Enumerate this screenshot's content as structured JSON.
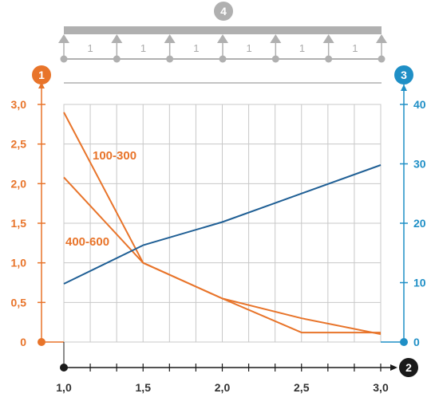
{
  "colors": {
    "left_axis": "#e8742a",
    "right_axis": "#1f8fc6",
    "bottom_axis": "#1a1a1a",
    "beam": "#b0b0b0",
    "grid": "#c8c8c8"
  },
  "badges": {
    "left": "1",
    "bottom": "2",
    "right": "3",
    "top": "4"
  },
  "beam": {
    "span_labels": [
      "1",
      "1",
      "1",
      "1",
      "1",
      "1"
    ]
  },
  "chart_data": {
    "type": "line",
    "x": [
      1.0,
      1.5,
      2.0,
      2.5,
      3.0
    ],
    "xlim": [
      1.0,
      3.0
    ],
    "x_ticks": [
      "1,0",
      "1,5",
      "2,0",
      "2,5",
      "3,0"
    ],
    "left_axis": {
      "ylim": [
        0,
        3.0
      ],
      "ticks": [
        "0",
        "0,5",
        "1,0",
        "1,5",
        "2,0",
        "2,5",
        "3,0"
      ]
    },
    "right_axis": {
      "ylim": [
        0,
        40
      ],
      "ticks": [
        "0",
        "10",
        "20",
        "30",
        "40"
      ]
    },
    "series": [
      {
        "name": "100-300",
        "axis": "left",
        "color": "#e8742a",
        "points": [
          [
            1.0,
            2.9
          ],
          [
            1.5,
            1.0
          ],
          [
            2.0,
            0.55
          ],
          [
            2.5,
            0.3
          ],
          [
            3.0,
            0.1
          ]
        ]
      },
      {
        "name": "400-600",
        "axis": "left",
        "color": "#e8742a",
        "points": [
          [
            1.0,
            2.08
          ],
          [
            1.5,
            1.0
          ],
          [
            2.0,
            0.55
          ],
          [
            2.5,
            0.12
          ],
          [
            3.0,
            0.12
          ]
        ]
      },
      {
        "axis": "right",
        "color": "#1f5f95",
        "points": [
          [
            1.0,
            9.8
          ],
          [
            1.5,
            16.3
          ],
          [
            2.0,
            20.2
          ],
          [
            3.0,
            29.8
          ]
        ]
      }
    ]
  }
}
